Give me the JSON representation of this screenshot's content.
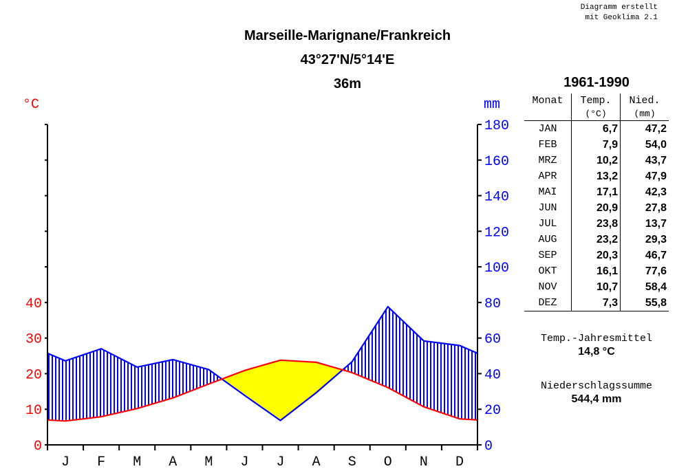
{
  "credit": {
    "line1": "Diagramm erstellt",
    "line2": "mit Geoklima 2.1"
  },
  "header": {
    "station": "Marseille-Marignane/Frankreich",
    "coords": "43°27'N/5°14'E",
    "elevation": "36m",
    "period": "1961-1990"
  },
  "table": {
    "col_month": "Monat",
    "col_temp": "Temp.",
    "col_temp_unit": "(°C)",
    "col_precip": "Nied.",
    "col_precip_unit": "(mm)",
    "rows": [
      {
        "month": "JAN",
        "temp": "6,7",
        "precip": "47,2"
      },
      {
        "month": "FEB",
        "temp": "7,9",
        "precip": "54,0"
      },
      {
        "month": "MRZ",
        "temp": "10,2",
        "precip": "43,7"
      },
      {
        "month": "APR",
        "temp": "13,2",
        "precip": "47,9"
      },
      {
        "month": "MAI",
        "temp": "17,1",
        "precip": "42,3"
      },
      {
        "month": "JUN",
        "temp": "20,9",
        "precip": "27,8"
      },
      {
        "month": "JUL",
        "temp": "23,8",
        "precip": "13,7"
      },
      {
        "month": "AUG",
        "temp": "23,2",
        "precip": "29,3"
      },
      {
        "month": "SEP",
        "temp": "20,3",
        "precip": "46,7"
      },
      {
        "month": "OKT",
        "temp": "16,1",
        "precip": "77,6"
      },
      {
        "month": "NOV",
        "temp": "10,7",
        "precip": "58,4"
      },
      {
        "month": "DEZ",
        "temp": "7,3",
        "precip": "55,8"
      }
    ]
  },
  "summary": {
    "temp_label": "Temp.-Jahresmittel",
    "temp_value": "14,8 °C",
    "precip_label": "Niederschlagssumme",
    "precip_value": "544,4 mm"
  },
  "chart_data": {
    "type": "line",
    "categories": [
      "J",
      "F",
      "M",
      "A",
      "M",
      "J",
      "J",
      "A",
      "S",
      "O",
      "N",
      "D"
    ],
    "series": [
      {
        "name": "Temp.",
        "unit": "°C",
        "color": "#ff0000",
        "values": [
          6.7,
          7.9,
          10.2,
          13.2,
          17.1,
          20.9,
          23.8,
          23.2,
          20.3,
          16.1,
          10.7,
          7.3
        ]
      },
      {
        "name": "Nied.",
        "unit": "mm",
        "color": "#0000ff",
        "values": [
          47.2,
          54.0,
          43.7,
          47.9,
          42.3,
          27.8,
          13.7,
          29.3,
          46.7,
          77.6,
          58.4,
          55.8
        ]
      }
    ],
    "y_left": {
      "label": "°C",
      "ticks": [
        0,
        10,
        20,
        30,
        40
      ],
      "color": "#ff0000"
    },
    "y_right": {
      "label": "mm",
      "ticks": [
        0,
        20,
        40,
        60,
        80,
        100,
        120,
        140,
        160,
        180
      ],
      "range": [
        0,
        180
      ],
      "color": "#0000ff"
    },
    "humid_fill": "#0000ff",
    "arid_fill": "#ffff00"
  }
}
